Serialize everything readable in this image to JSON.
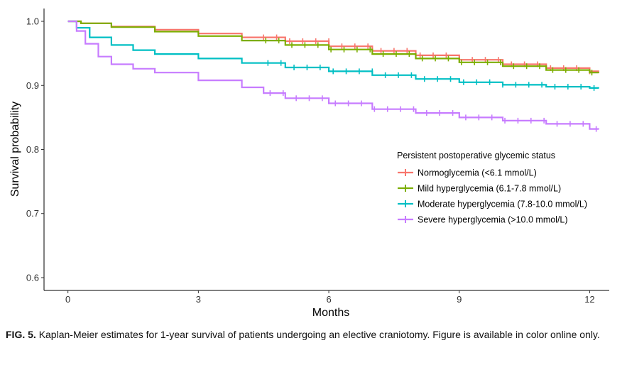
{
  "caption": {
    "label": "FIG. 5.",
    "text": "Kaplan-Meier estimates for 1-year survival of patients undergoing an elective craniotomy. Figure is available in color online only."
  },
  "chart_data": {
    "type": "line",
    "step": true,
    "title": "",
    "xlabel": "Months",
    "ylabel": "Survival probability",
    "xlim": [
      -0.55,
      12.45
    ],
    "ylim": [
      0.58,
      1.02
    ],
    "xticks": [
      0,
      3,
      6,
      9,
      12
    ],
    "xtick_labels": [
      "0",
      "3",
      "6",
      "9",
      "12"
    ],
    "yticks": [
      0.6,
      0.7,
      0.8,
      0.9,
      1.0
    ],
    "ytick_labels": [
      "0.6",
      "0.7",
      "0.8",
      "0.9",
      "1.0"
    ],
    "grid": false,
    "legend": {
      "title": "Persistent postoperative glycemic status",
      "position": "right"
    },
    "series": [
      {
        "name": "Normoglycemia (<6.1 mmol/L)",
        "color": "#F8766D",
        "x": [
          0,
          0.3,
          1,
          2,
          3,
          4,
          5,
          6,
          7,
          8,
          9,
          10,
          11,
          12,
          12.2
        ],
        "y": [
          1.0,
          0.997,
          0.992,
          0.987,
          0.981,
          0.975,
          0.969,
          0.961,
          0.954,
          0.947,
          0.94,
          0.933,
          0.927,
          0.922,
          0.92
        ]
      },
      {
        "name": "Mild hyperglycemia (6.1-7.8 mmol/L)",
        "color": "#7CAE00",
        "x": [
          0,
          0.3,
          1,
          2,
          3,
          4,
          5,
          6,
          7,
          8,
          9,
          10,
          11,
          12,
          12.2
        ],
        "y": [
          1.0,
          0.997,
          0.991,
          0.984,
          0.977,
          0.97,
          0.963,
          0.956,
          0.949,
          0.942,
          0.936,
          0.93,
          0.924,
          0.92,
          0.919
        ]
      },
      {
        "name": "Moderate hyperglycemia (7.8-10.0 mmol/L)",
        "color": "#00BFC4",
        "x": [
          0,
          0.2,
          0.5,
          1,
          1.5,
          2,
          3,
          4,
          5,
          6,
          7,
          8,
          9,
          10,
          11,
          12,
          12.2
        ],
        "y": [
          1.0,
          0.99,
          0.975,
          0.963,
          0.955,
          0.949,
          0.942,
          0.935,
          0.928,
          0.922,
          0.916,
          0.91,
          0.905,
          0.901,
          0.898,
          0.896,
          0.895
        ]
      },
      {
        "name": "Severe hyperglycemia (>10.0 mmol/L)",
        "color": "#C77CFF",
        "x": [
          0,
          0.2,
          0.4,
          0.7,
          1,
          1.5,
          2,
          3,
          4,
          4.5,
          5,
          6,
          7,
          8,
          9,
          10,
          11,
          12,
          12.2
        ],
        "y": [
          1.0,
          0.985,
          0.965,
          0.945,
          0.933,
          0.926,
          0.92,
          0.908,
          0.897,
          0.888,
          0.88,
          0.872,
          0.863,
          0.857,
          0.85,
          0.845,
          0.84,
          0.832,
          0.831
        ]
      }
    ]
  }
}
